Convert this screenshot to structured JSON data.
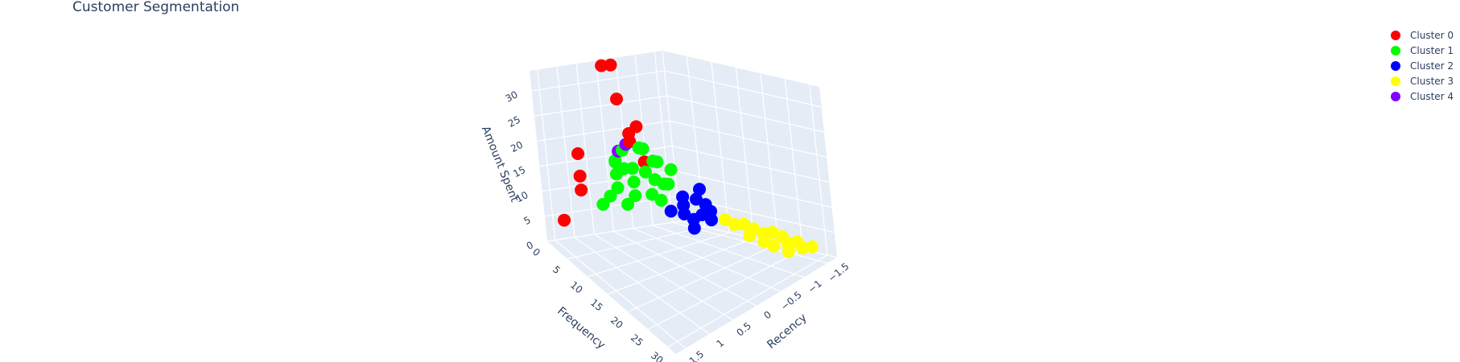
{
  "chart_data": {
    "type": "scatter3d",
    "title": "Customer Segmentation",
    "axes": {
      "x": {
        "label": "Recency",
        "range": [
          -1.7,
          1.7
        ],
        "ticks": [
          -1.5,
          -1,
          -0.5,
          0,
          0.5,
          1,
          1.5
        ],
        "tick_labels": [
          "−1.5",
          "−1",
          "−0.5",
          "0",
          "0.5",
          "1",
          "1.5"
        ]
      },
      "y": {
        "label": "Frequency",
        "range": [
          0,
          32
        ],
        "ticks": [
          0,
          5,
          10,
          15,
          20,
          25,
          30
        ],
        "tick_labels": [
          "0",
          "5",
          "10",
          "15",
          "20",
          "25",
          "30"
        ]
      },
      "z": {
        "label": "Amount Spent",
        "range": [
          0,
          34
        ],
        "ticks": [
          0,
          5,
          10,
          15,
          20,
          25,
          30
        ],
        "tick_labels": [
          "0",
          "5",
          "10",
          "15",
          "20",
          "25",
          "30"
        ]
      }
    },
    "grid": true,
    "legend_position": "top-right",
    "series": [
      {
        "name": "Cluster 0",
        "color": "#ff0000",
        "points": [
          [
            -0.3,
            0.5,
            33
          ],
          [
            -0.1,
            0.2,
            33
          ],
          [
            -0.2,
            2,
            27
          ],
          [
            -0.4,
            4,
            22
          ],
          [
            -0.2,
            4,
            21
          ],
          [
            -0.1,
            5,
            20
          ],
          [
            0.8,
            1,
            17
          ],
          [
            -0.3,
            6,
            16
          ],
          [
            1.0,
            3,
            14
          ],
          [
            1.1,
            4,
            12
          ],
          [
            1.5,
            3,
            6
          ]
        ]
      },
      {
        "name": "Cluster 1",
        "color": "#00ff00",
        "points": [
          [
            -0.4,
            5,
            18
          ],
          [
            -0.2,
            6,
            19
          ],
          [
            0.0,
            4,
            18
          ],
          [
            0.3,
            5,
            17
          ],
          [
            -0.5,
            7,
            16
          ],
          [
            -0.3,
            8,
            17
          ],
          [
            0.1,
            7,
            16
          ],
          [
            0.4,
            6,
            15
          ],
          [
            -0.6,
            9,
            15
          ],
          [
            -0.2,
            9,
            14
          ],
          [
            0.2,
            8,
            14
          ],
          [
            0.5,
            7,
            13
          ],
          [
            -0.4,
            10,
            13
          ],
          [
            0.0,
            10,
            12
          ],
          [
            0.3,
            9,
            12
          ],
          [
            -0.1,
            11,
            11
          ],
          [
            0.6,
            6,
            11
          ],
          [
            0.1,
            5,
            15
          ],
          [
            -0.3,
            6,
            14
          ],
          [
            0.2,
            4,
            16
          ],
          [
            -0.5,
            8,
            12
          ],
          [
            0.4,
            8,
            10
          ],
          [
            0.7,
            5,
            9
          ]
        ]
      },
      {
        "name": "Cluster 2",
        "color": "#0000ff",
        "points": [
          [
            -0.8,
            13,
            12
          ],
          [
            -0.6,
            14,
            11
          ],
          [
            -0.4,
            13,
            10
          ],
          [
            -0.7,
            15,
            10
          ],
          [
            -0.5,
            16,
            9
          ],
          [
            -0.3,
            14,
            9
          ],
          [
            -0.6,
            17,
            8
          ],
          [
            -0.4,
            15,
            8
          ],
          [
            -0.2,
            12,
            9
          ],
          [
            -0.5,
            12,
            11
          ],
          [
            -0.7,
            16,
            9
          ],
          [
            -0.3,
            16,
            7
          ]
        ]
      },
      {
        "name": "Cluster 3",
        "color": "#ffff00",
        "points": [
          [
            -1.0,
            18,
            6
          ],
          [
            -1.1,
            19,
            6
          ],
          [
            -1.2,
            20,
            5
          ],
          [
            -1.3,
            21,
            4
          ],
          [
            -1.4,
            22,
            4
          ],
          [
            -1.5,
            23,
            3
          ],
          [
            -1.5,
            24,
            2
          ],
          [
            -1.6,
            25,
            2
          ],
          [
            -1.6,
            26,
            1
          ],
          [
            -1.7,
            27,
            1
          ],
          [
            -1.1,
            20,
            4
          ],
          [
            -1.3,
            23,
            2
          ],
          [
            -0.9,
            17,
            7
          ],
          [
            -1.4,
            25,
            1
          ],
          [
            -1.2,
            22,
            3
          ]
        ]
      },
      {
        "name": "Cluster 4",
        "color": "#8000ff",
        "points": [
          [
            -0.1,
            4,
            19
          ],
          [
            0.1,
            4,
            18
          ]
        ]
      }
    ]
  }
}
